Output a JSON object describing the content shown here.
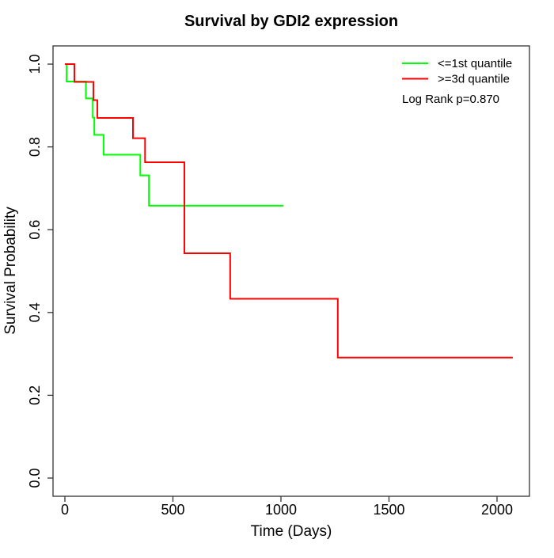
{
  "window": {
    "background": "#ffffff"
  },
  "chart_data": {
    "type": "line",
    "variant": "kaplan_meier_step",
    "title": "Survival by GDI2 expression",
    "xlabel": "Time (Days)",
    "ylabel": "Survival Probability",
    "xlim": [
      0,
      2075
    ],
    "ylim": [
      0.0,
      1.0
    ],
    "x_ticks": [
      0,
      500,
      1000,
      1500,
      2000
    ],
    "x_tick_labels": [
      "0",
      "500",
      "1000",
      "1500",
      "2000"
    ],
    "y_ticks": [
      0.0,
      0.2,
      0.4,
      0.6,
      0.8,
      1.0
    ],
    "y_tick_labels": [
      "0.0",
      "0.2",
      "0.4",
      "0.6",
      "0.8",
      "1.0"
    ],
    "grid": false,
    "legend_position": "top-right",
    "annotation": "Log Rank p=0.870",
    "axis_color": "#333333",
    "text_color": "#000000",
    "series": [
      {
        "name": "<=1st quantile",
        "color": "#00ff00",
        "step": "post",
        "points": [
          [
            0,
            1.0
          ],
          [
            8,
            0.958
          ],
          [
            97,
            0.917
          ],
          [
            129,
            0.871
          ],
          [
            136,
            0.829
          ],
          [
            179,
            0.781
          ],
          [
            349,
            0.731
          ],
          [
            389,
            0.658
          ],
          [
            1012,
            0.658
          ]
        ]
      },
      {
        "name": ">=3d quantile",
        "color": "#ff0000",
        "step": "post",
        "points": [
          [
            0,
            1.0
          ],
          [
            44,
            0.957
          ],
          [
            132,
            0.913
          ],
          [
            150,
            0.87
          ],
          [
            315,
            0.821
          ],
          [
            371,
            0.763
          ],
          [
            553,
            0.543
          ],
          [
            765,
            0.433
          ],
          [
            1263,
            0.291
          ],
          [
            2073,
            0.291
          ]
        ]
      }
    ]
  }
}
